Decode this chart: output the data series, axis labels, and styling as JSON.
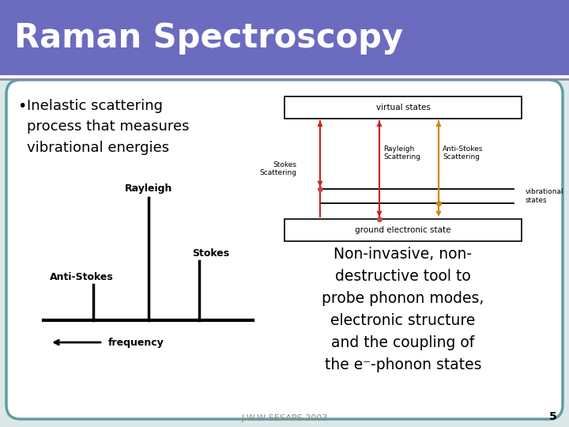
{
  "title": "Raman Spectroscopy",
  "title_bg": "#6b6bbf",
  "title_color": "white",
  "slide_bg": "#dce8e8",
  "content_bg": "white",
  "bullet_text": "Inelastic scattering\nprocess that measures\nvibrational energies",
  "right_text_lines": [
    "Non-invasive, non-",
    "destructive tool to",
    "probe phonon modes,",
    "electronic structure",
    "and the coupling of",
    "the e⁻-phonon states"
  ],
  "footer_text": "J.W.W SESAPS 2003",
  "page_number": "5",
  "border_color": "#5f9ea0",
  "arrow_color_red": "#cc2222",
  "arrow_color_orange": "#cc8800",
  "dot_color_red": "#cc4444",
  "dot_color_orange": "#cc8800"
}
